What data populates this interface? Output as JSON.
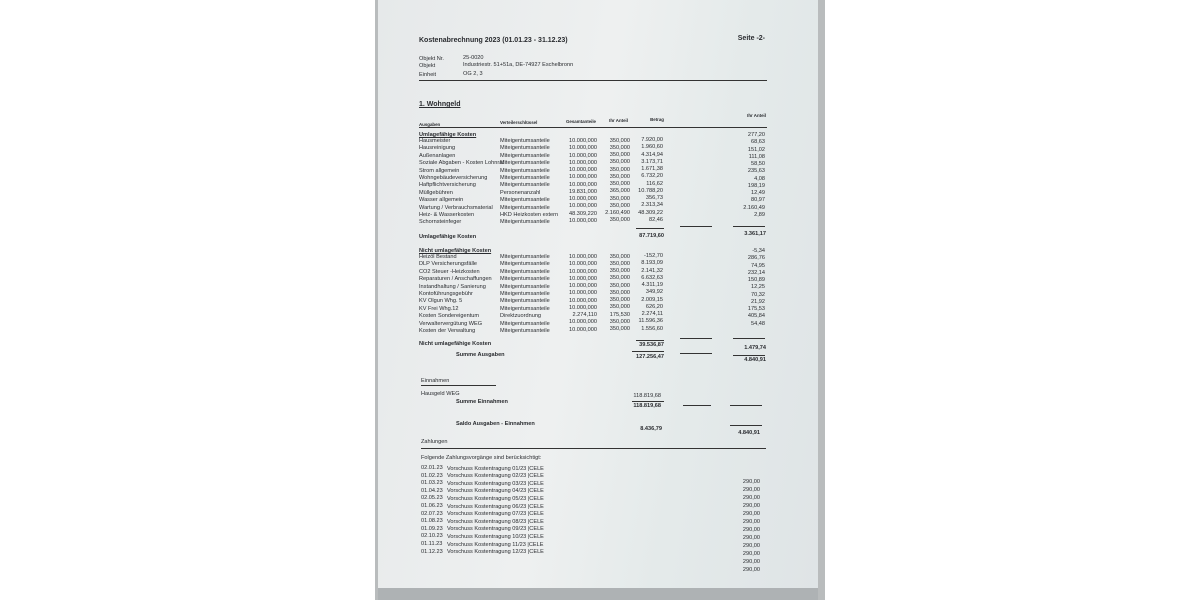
{
  "header": {
    "title": "Kostenabrechnung 2023 (01.01.23 - 31.12.23)",
    "page": "Seite -2-",
    "fields": [
      {
        "label": "Objekt Nr.",
        "value": "25-0020"
      },
      {
        "label": "Objekt",
        "value": "Industriestr. 51+51a, DE-74927 Eschelbronn"
      },
      {
        "label": "Einheit",
        "value": "OG 2, 3"
      }
    ]
  },
  "section_title": "1. Wohngeld",
  "columns": [
    "Ausgaben",
    "Verteilerschlüssel",
    "Gesamtanteile",
    "Ihr Anteil",
    "Betrag",
    "Ihr Anteil"
  ],
  "umlage": {
    "heading": "Umlagefähige Kosten",
    "rows": [
      [
        "Hausmeister",
        "Miteigentumsanteile",
        "10.000,000",
        "350,000",
        "7.920,00",
        "277,20"
      ],
      [
        "Hausreinigung",
        "Miteigentumsanteile",
        "10.000,000",
        "350,000",
        "1.960,60",
        "68,63"
      ],
      [
        "Außenanlagen",
        "Miteigentumsanteile",
        "10.000,000",
        "350,000",
        "4.314,94",
        "151,02"
      ],
      [
        "Soziale Abgaben - Kosten Lohnrat",
        "Miteigentumsanteile",
        "10.000,000",
        "350,000",
        "3.173,71",
        "111,08"
      ],
      [
        "Strom allgemein",
        "Miteigentumsanteile",
        "10.000,000",
        "350,000",
        "1.671,38",
        "58,50"
      ],
      [
        "Wohngebäudeversicherung",
        "Miteigentumsanteile",
        "10.000,000",
        "350,000",
        "6.732,20",
        "235,63"
      ],
      [
        "Haftpflichtversicherung",
        "Miteigentumsanteile",
        "10.000,000",
        "350,000",
        "116,62",
        "4,08"
      ],
      [
        "Müllgebühren",
        "Personenanzahl",
        "19.831,000",
        "365,000",
        "10.788,20",
        "198,19"
      ],
      [
        "Wasser allgemein",
        "Miteigentumsanteile",
        "10.000,000",
        "350,000",
        "356,73",
        "12,49"
      ],
      [
        "Wartung / Verbrauchsmaterial",
        "Miteigentumsanteile",
        "10.000,000",
        "350,000",
        "2.313,34",
        "80,97"
      ],
      [
        "Heiz- & Wasserkosten",
        "HKD Heizkosten extern",
        "48.309,220",
        "2.160,490",
        "48.309,22",
        "2.160,49"
      ],
      [
        "Schornsteinfeger",
        "Miteigentumsanteile",
        "10.000,000",
        "350,000",
        "82,46",
        "2,89"
      ]
    ],
    "total_label": "Umlagefähige Kosten",
    "total": "87.719,60",
    "total_share": "3.361,17"
  },
  "nicht_umlage": {
    "heading": "Nicht umlagefähige Kosten",
    "rows": [
      [
        "Heizöl Bestand",
        "Miteigentumsanteile",
        "10.000,000",
        "350,000",
        "-152,70",
        "-5,34"
      ],
      [
        "DLP Versicherungsfälle",
        "Miteigentumsanteile",
        "10.000,000",
        "350,000",
        "8.193,09",
        "286,76"
      ],
      [
        "CO2 Steuer -Heizkosten",
        "Miteigentumsanteile",
        "10.000,000",
        "350,000",
        "2.141,32",
        "74,95"
      ],
      [
        "Reparaturen / Anschaffungen",
        "Miteigentumsanteile",
        "10.000,000",
        "350,000",
        "6.632,63",
        "232,14"
      ],
      [
        "Instandhaltung / Sanierung",
        "Miteigentumsanteile",
        "10.000,000",
        "350,000",
        "4.311,19",
        "150,89"
      ],
      [
        "Kontoführungsgebühr",
        "Miteigentumsanteile",
        "10.000,000",
        "350,000",
        "349,92",
        "12,25"
      ],
      [
        "KV Olgun Whg. 5",
        "Miteigentumsanteile",
        "10.000,000",
        "350,000",
        "2.009,15",
        "70,32"
      ],
      [
        "KV Frei Whg.12",
        "Miteigentumsanteile",
        "10.000,000",
        "350,000",
        "626,20",
        "21,92"
      ],
      [
        "Kosten Sondereigentum",
        "Direktzuordnung",
        "2.274,110",
        "175,530",
        "2.274,11",
        "175,53"
      ],
      [
        "Verwaltervergütung WEG",
        "Miteigentumsanteile",
        "10.000,000",
        "350,000",
        "11.596,36",
        "405,84"
      ],
      [
        "Kosten der Verwaltung",
        "Miteigentumsanteile",
        "10.000,000",
        "350,000",
        "1.556,60",
        "54,48"
      ]
    ],
    "total_label": "Nicht umlagefähige Kosten",
    "total": "39.536,87",
    "total_share": "1.479,74"
  },
  "summe_ausgaben": {
    "label": "Summe Ausgaben",
    "total": "127.256,47",
    "share": "4.840,91"
  },
  "einnahmen": {
    "heading": "Einnahmen",
    "row_label": "Hausgeld WEG",
    "row_value": "118.819,68",
    "sum_label": "Summe Einnahmen",
    "sum_value": "118.819,68"
  },
  "saldo": {
    "label": "Saldo Ausgaben - Einnahmen",
    "value": "8.436,79",
    "share": "4.840,91"
  },
  "zahlungen": {
    "heading": "Zahlungen",
    "intro": "Folgende Zahlungsvorgänge sind berücksichtigt:",
    "rows": [
      [
        "02.01.23",
        "Vorschuss Kostentragung 01/23 |CELE"
      ],
      [
        "01.02.23",
        "Vorschuss Kostentragung 02/23 |CELE"
      ],
      [
        "01.03.23",
        "Vorschuss Kostentragung 03/23 |CELE"
      ],
      [
        "01.04.23",
        "Vorschuss Kostentragung 04/23 |CELE"
      ],
      [
        "02.05.23",
        "Vorschuss Kostentragung 05/23 |CELE"
      ],
      [
        "01.06.23",
        "Vorschuss Kostentragung 06/23 |CELE"
      ],
      [
        "02.07.23",
        "Vorschuss Kostentragung 07/23 |CELE"
      ],
      [
        "01.08.23",
        "Vorschuss Kostentragung 08/23 |CELE"
      ],
      [
        "01.09.23",
        "Vorschuss Kostentragung 09/23 |CELE"
      ],
      [
        "02.10.23",
        "Vorschuss Kostentragung 10/23 |CELE"
      ],
      [
        "01.11.23",
        "Vorschuss Kostentragung 11/23 |CELE"
      ],
      [
        "01.12.23",
        "Vorschuss Kostentragung 12/23 |CELE"
      ]
    ],
    "amounts": [
      "290,00",
      "290,00",
      "290,00",
      "290,00",
      "290,00",
      "290,00",
      "290,00",
      "290,00",
      "290,00",
      "290,00",
      "290,00",
      "290,00"
    ]
  }
}
